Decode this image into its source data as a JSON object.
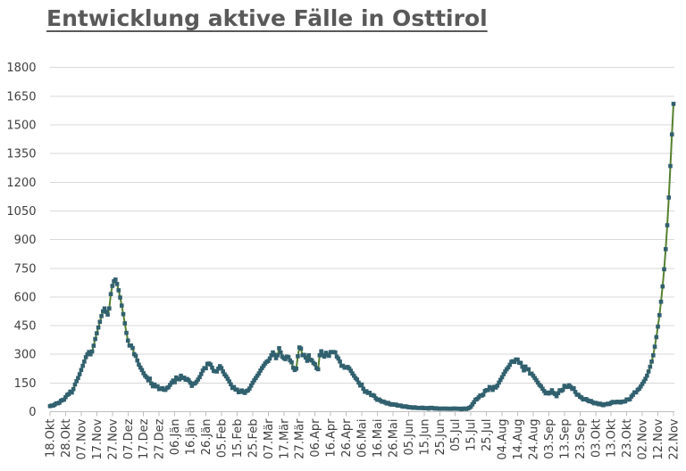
{
  "title": {
    "text": "Entwicklung aktive Fälle in Osttirol",
    "color": "#595959",
    "underline": true
  },
  "chart_data": {
    "type": "line",
    "title": "Entwicklung aktive Fälle in Osttirol",
    "xlabel": "",
    "ylabel": "",
    "ylim": [
      0,
      1800
    ],
    "y_tick_step": 150,
    "y_tick_labels": [
      "0",
      "150",
      "300",
      "450",
      "600",
      "750",
      "900",
      "1050",
      "1200",
      "1350",
      "1500",
      "1650",
      "1800"
    ],
    "x_tick_labels": [
      "18.Okt",
      "28.Okt",
      "07.Nov",
      "17.Nov",
      "27.Nov",
      "07.Dez",
      "17.Dez",
      "27.Dez",
      "06.Jän",
      "16.Jän",
      "26.Jän",
      "05.Feb",
      "15.Feb",
      "25.Feb",
      "07.Mär",
      "17.Mär",
      "27.Mär",
      "06.Apr",
      "16.Apr",
      "26.Apr",
      "06.Mai",
      "16.Mai",
      "26.Mai",
      "05.Jun",
      "15.Jun",
      "25.Jun",
      "05.Jul",
      "15.Jul",
      "25.Jul",
      "04.Aug",
      "14.Aug",
      "24.Aug",
      "03.Sep",
      "13.Sep",
      "23.Sep",
      "03.Okt",
      "13.Okt",
      "23.Okt",
      "02.Nov",
      "12.Nov",
      "22.Nov"
    ],
    "x_tick_interval_days": 10,
    "grid": "horizontal",
    "legend": "none",
    "colors": {
      "line": "#56812f",
      "marker": "#31606f",
      "gridline": "#d9d9d9",
      "axis": "#bfbfbf",
      "tick_label": "#404040",
      "background": "#ffffff"
    },
    "series": [
      {
        "name": "aktive Fälle",
        "start_label": "18.Okt",
        "end_label": "22.Nov",
        "values": [
          29,
          32,
          32,
          37,
          43,
          44,
          47,
          57,
          61,
          63,
          76,
          88,
          92,
          105,
          100,
          118,
          142,
          160,
          176,
          196,
          218,
          240,
          262,
          285,
          300,
          312,
          300,
          315,
          345,
          380,
          410,
          440,
          470,
          500,
          525,
          540,
          522,
          508,
          540,
          615,
          658,
          682,
          691,
          668,
          635,
          597,
          555,
          510,
          462,
          412,
          372,
          346,
          346,
          333,
          301,
          292,
          268,
          246,
          231,
          218,
          201,
          188,
          180,
          164,
          173,
          148,
          133,
          142,
          132,
          133,
          118,
          120,
          123,
          115,
          114,
          124,
          128,
          140,
          152,
          163,
          154,
          179,
          171,
          169,
          188,
          176,
          178,
          167,
          171,
          164,
          152,
          135,
          146,
          148,
          156,
          168,
          181,
          197,
          215,
          228,
          227,
          250,
          252,
          246,
          230,
          213,
          212,
          210,
          225,
          238,
          228,
          210,
          195,
          185,
          172,
          158,
          143,
          124,
          129,
          116,
          115,
          102,
          105,
          111,
          103,
          98,
          108,
          111,
          121,
          136,
          151,
          164,
          176,
          188,
          200,
          215,
          228,
          240,
          252,
          261,
          265,
          278,
          295,
          310,
          298,
          280,
          295,
          332,
          310,
          288,
          280,
          275,
          288,
          285,
          268,
          258,
          230,
          218,
          225,
          290,
          336,
          330,
          295,
          297,
          283,
          266,
          295,
          272,
          268,
          255,
          248,
          228,
          222,
          295,
          316,
          296,
          288,
          308,
          298,
          292,
          312,
          311,
          312,
          310,
          288,
          278,
          262,
          240,
          240,
          230,
          231,
          234,
          226,
          214,
          200,
          188,
          176,
          168,
          152,
          137,
          142,
          120,
          104,
          107,
          98,
          99,
          87,
          87,
          83,
          70,
          62,
          64,
          58,
          52,
          53,
          48,
          43,
          46,
          40,
          37,
          39,
          36,
          37,
          32,
          32,
          32,
          28,
          26,
          28,
          26,
          23,
          24,
          22,
          20,
          23,
          20,
          19,
          20,
          19,
          21,
          18,
          18,
          19,
          16,
          20,
          20,
          18,
          16,
          18,
          16,
          15,
          16,
          16,
          16,
          16,
          15,
          16,
          15,
          15,
          17,
          16,
          15,
          16,
          15,
          13,
          16,
          16,
          14,
          17,
          20,
          26,
          38,
          50,
          63,
          66,
          75,
          85,
          84,
          89,
          108,
          113,
          113,
          129,
          124,
          114,
          130,
          126,
          136,
          152,
          166,
          180,
          196,
          210,
          222,
          232,
          245,
          261,
          264,
          260,
          273,
          272,
          256,
          255,
          235,
          216,
          236,
          222,
          222,
          199,
          199,
          188,
          176,
          165,
          152,
          140,
          133,
          120,
          108,
          96,
          100,
          95,
          100,
          112,
          98,
          92,
          81,
          97,
          112,
          109,
          114,
          135,
          129,
          130,
          138,
          130,
          119,
          123,
          103,
          89,
          88,
          78,
          74,
          64,
          65,
          66,
          59,
          54,
          56,
          50,
          44,
          46,
          43,
          39,
          42,
          37,
          34,
          39,
          39,
          42,
          40,
          46,
          51,
          49,
          49,
          52,
          51,
          48,
          52,
          53,
          54,
          64,
          63,
          65,
          79,
          88,
          101,
          101,
          114,
          120,
          132,
          145,
          158,
          172,
          188,
          210,
          235,
          262,
          295,
          340,
          390,
          445,
          505,
          575,
          655,
          745,
          850,
          975,
          1120,
          1285,
          1450,
          1610
        ]
      }
    ]
  }
}
